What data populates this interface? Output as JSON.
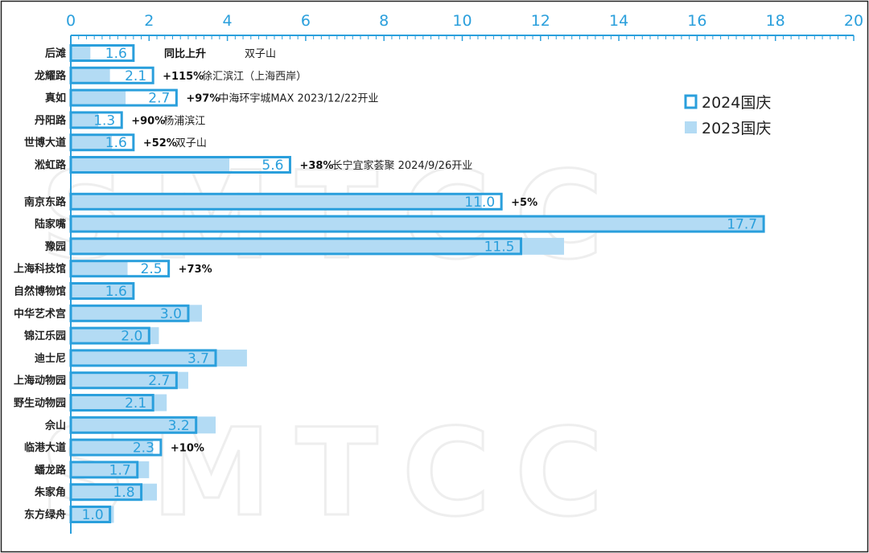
{
  "chart_data": {
    "type": "bar",
    "orientation": "horizontal",
    "xlim": [
      0,
      20
    ],
    "xticks": [
      "0",
      "2",
      "4",
      "6",
      "8",
      "10",
      "12",
      "14",
      "16",
      "18",
      "20"
    ],
    "grid": false,
    "legend_position": "right",
    "watermark": "SMTCC",
    "header_labels": {
      "yoy": "同比上升",
      "district": "双子山"
    },
    "series": [
      {
        "name": "2024国庆",
        "style": "outline",
        "color": "#2a9fdc"
      },
      {
        "name": "2023国庆",
        "style": "filled",
        "color": "#b3dbf4"
      }
    ],
    "rows": [
      {
        "category": "后滩",
        "value_2024": 1.6,
        "label": "1.6",
        "value_2023": 0.5,
        "yoy": "",
        "note": ""
      },
      {
        "category": "龙耀路",
        "value_2024": 2.1,
        "label": "2.1",
        "value_2023": 1.0,
        "yoy": "+115%",
        "note": "徐汇滨江（上海西岸）"
      },
      {
        "category": "真如",
        "value_2024": 2.7,
        "label": "2.7",
        "value_2023": 1.4,
        "yoy": "+97%",
        "note": "中海环宇城MAX 2023/12/22开业"
      },
      {
        "category": "丹阳路",
        "value_2024": 1.3,
        "label": "1.3",
        "value_2023": 0.7,
        "yoy": "+90%",
        "note": "杨浦滨江"
      },
      {
        "category": "世博大道",
        "value_2024": 1.6,
        "label": "1.6",
        "value_2023": 1.05,
        "yoy": "+52%",
        "note": "双子山"
      },
      {
        "category": "淞虹路",
        "value_2024": 5.6,
        "label": "5.6",
        "value_2023": 4.05,
        "yoy": "+38%",
        "note": "长宁宜家荟聚 2024/9/26开业"
      },
      {
        "category": "南京东路",
        "value_2024": 11.0,
        "label": "11.0",
        "value_2023": 10.5,
        "yoy": "+5%",
        "note": ""
      },
      {
        "category": "陆家嘴",
        "value_2024": 17.7,
        "label": "17.7",
        "value_2023": 17.7,
        "yoy": "",
        "note": ""
      },
      {
        "category": "豫园",
        "value_2024": 11.5,
        "label": "11.5",
        "value_2023": 12.6,
        "yoy": "",
        "note": ""
      },
      {
        "category": "上海科技馆",
        "value_2024": 2.5,
        "label": "2.5",
        "value_2023": 1.45,
        "yoy": "+73%",
        "note": ""
      },
      {
        "category": "自然博物馆",
        "value_2024": 1.6,
        "label": "1.6",
        "value_2023": 1.6,
        "yoy": "",
        "note": ""
      },
      {
        "category": "中华艺术宫",
        "value_2024": 3.0,
        "label": "3.0",
        "value_2023": 3.35,
        "yoy": "",
        "note": ""
      },
      {
        "category": "锦江乐园",
        "value_2024": 2.0,
        "label": "2.0",
        "value_2023": 2.25,
        "yoy": "",
        "note": ""
      },
      {
        "category": "迪士尼",
        "value_2024": 3.7,
        "label": "3.7",
        "value_2023": 4.5,
        "yoy": "",
        "note": ""
      },
      {
        "category": "上海动物园",
        "value_2024": 2.7,
        "label": "2.7",
        "value_2023": 3.0,
        "yoy": "",
        "note": ""
      },
      {
        "category": "野生动物园",
        "value_2024": 2.1,
        "label": "2.1",
        "value_2023": 2.45,
        "yoy": "",
        "note": ""
      },
      {
        "category": "佘山",
        "value_2024": 3.2,
        "label": "3.2",
        "value_2023": 3.7,
        "yoy": "",
        "note": ""
      },
      {
        "category": "临港大道",
        "value_2024": 2.3,
        "label": "2.3",
        "value_2023": 2.1,
        "yoy": "+10%",
        "note": ""
      },
      {
        "category": "蟠龙路",
        "value_2024": 1.7,
        "label": "1.7",
        "value_2023": 2.0,
        "yoy": "",
        "note": ""
      },
      {
        "category": "朱家角",
        "value_2024": 1.8,
        "label": "1.8",
        "value_2023": 2.2,
        "yoy": "",
        "note": ""
      },
      {
        "category": "东方绿舟",
        "value_2024": 1.0,
        "label": "1.0",
        "value_2023": 1.1,
        "yoy": "",
        "note": ""
      }
    ]
  }
}
